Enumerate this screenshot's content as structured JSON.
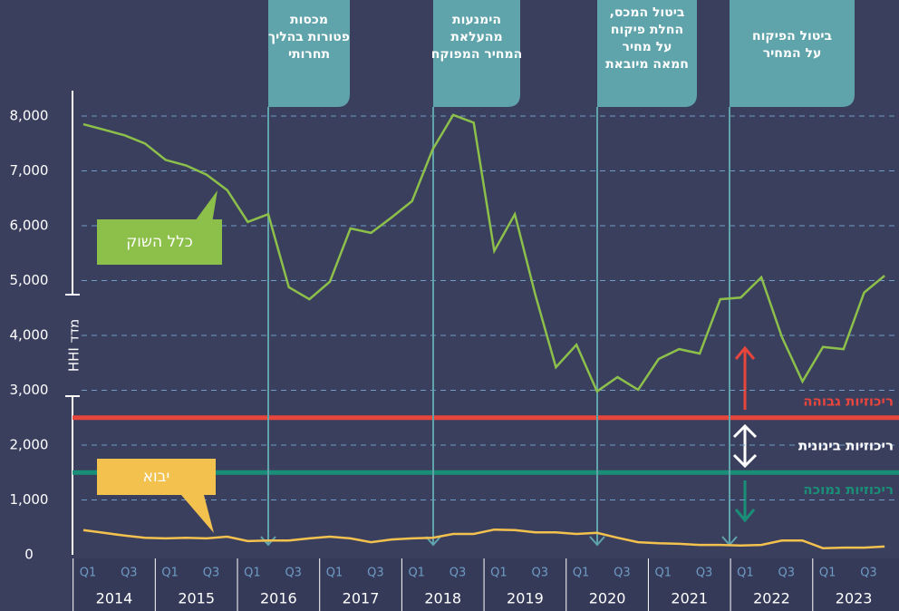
{
  "chart_data": {
    "type": "line",
    "y_label": "מדד HHI",
    "categories": [
      "Q1",
      null,
      "Q3",
      null,
      "Q1",
      null,
      "Q3",
      null,
      "Q1",
      null,
      "Q3",
      null,
      "Q1",
      null,
      "Q3",
      null,
      "Q1",
      null,
      "Q3",
      null,
      "Q1",
      null,
      "Q3",
      null,
      "Q1",
      null,
      "Q3",
      null,
      "Q1",
      null,
      "Q3",
      null,
      "Q1",
      null,
      "Q3",
      null,
      "Q1",
      null,
      "Q3",
      null
    ],
    "x_groups": [
      "2014",
      "2015",
      "2016",
      "2017",
      "2018",
      "2019",
      "2020",
      "2021",
      "2022",
      "2023"
    ],
    "series": [
      {
        "name": "כלל השוק",
        "color": "#8cc04a",
        "values": [
          7850,
          7750,
          7650,
          7500,
          7200,
          7100,
          6930,
          6650,
          6070,
          6210,
          4880,
          4660,
          4980,
          5950,
          5870,
          6150,
          6450,
          7390,
          8020,
          7880,
          5540,
          6210,
          4740,
          3420,
          3830,
          2980,
          3240,
          3010,
          3570,
          3750,
          3670,
          4660,
          4690,
          5060,
          3970,
          3160,
          3790,
          3750,
          4780,
          5090
        ]
      },
      {
        "name": "יבוא",
        "color": "#f2c14e",
        "values": [
          450,
          400,
          350,
          310,
          300,
          310,
          300,
          330,
          250,
          260,
          260,
          300,
          330,
          300,
          230,
          280,
          300,
          310,
          380,
          380,
          460,
          450,
          410,
          410,
          380,
          400,
          310,
          230,
          210,
          200,
          180,
          180,
          170,
          180,
          260,
          260,
          120,
          130,
          130,
          150
        ]
      }
    ],
    "ylim": [
      0,
      8000
    ],
    "yticks": [
      0,
      {
        "value": 1000,
        "label": "1,000"
      },
      {
        "value": 2000,
        "label": "2,000"
      },
      {
        "value": 3000,
        "label": "3,000"
      },
      {
        "value": 4000,
        "label": "4,000"
      },
      {
        "value": 5000,
        "label": "5,000"
      },
      {
        "value": 6000,
        "label": "6,000"
      },
      {
        "value": 7000,
        "label": "7,000"
      },
      {
        "value": 8000,
        "label": "8,000"
      }
    ],
    "grid": true,
    "thresholds": [
      {
        "label": "ריכוזיות גבוהה",
        "value": 2500,
        "color": "#e8453c"
      },
      {
        "label": "ריכוזיות נמוכה",
        "value": 1500,
        "color": "#1a8f78"
      }
    ],
    "middle_label": "ריכוזיות בינונית",
    "annotations": [
      {
        "lines": [
          "מכסות",
          "פטורות בהליך",
          "תחרותי"
        ]
      },
      {
        "lines": [
          "הימנעות",
          "מהעלאת",
          "המחיר המפוקח"
        ]
      },
      {
        "lines": [
          "ביטול המכס,",
          "החלת פיקוח",
          "על מחיר",
          "חמאה מיובאת"
        ]
      },
      {
        "lines": [
          "ביטול הפיקוח",
          "על המחיר"
        ]
      }
    ]
  }
}
